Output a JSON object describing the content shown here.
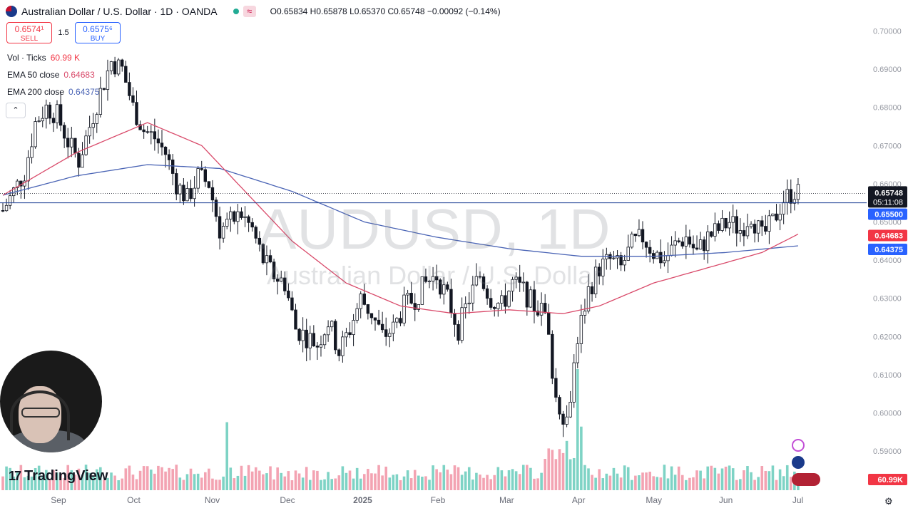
{
  "header": {
    "title": "Australian Dollar / U.S. Dollar · 1D · OANDA",
    "ohlc": "O0.65834 H0.65878 L0.65370 C0.65748 −0.00092 (−0.14%)",
    "sell_price": "0.6574¹",
    "sell_label": "SELL",
    "spread": "1.5",
    "buy_price": "0.6575⁶",
    "buy_label": "BUY"
  },
  "legend": {
    "vol_label": "Vol · Ticks",
    "vol_value": "60.99 K",
    "ema50_label": "EMA 50 close",
    "ema50_value": "0.64683",
    "ema200_label": "EMA 200 close",
    "ema200_value": "0.64375",
    "collapse_glyph": "⌃"
  },
  "watermark": {
    "symbol": "AUDUSD, 1D",
    "name": "Australian Dollar / U.S. Dollar"
  },
  "branding": {
    "logo_text": "TradingView",
    "logo_mark": "17"
  },
  "colors": {
    "up": "#131722",
    "down": "#131722",
    "ema50": "#d94a6a",
    "ema200": "#4a64b5",
    "hline": "#1e3f94",
    "vol_up": "#7ed3c5",
    "vol_down": "#f3a3b2",
    "last_bg": "#131722",
    "ema50_bg": "#f23645",
    "ema200_bg": "#2962ff",
    "hline_bg": "#2962ff"
  },
  "icons": [
    "lightning-icon",
    "au-flag-icon",
    "us-flag-icon",
    "au-flag-icon",
    "settings-gear-icon"
  ],
  "chart_data": {
    "type": "candlestick",
    "symbol": "AUDUSD",
    "timeframe": "1D",
    "ylim": [
      0.585,
      0.7025
    ],
    "y_ticks": [
      "0.70000",
      "0.69000",
      "0.68000",
      "0.67000",
      "0.66000",
      "0.65000",
      "0.64000",
      "0.63000",
      "0.62000",
      "0.61000",
      "0.60000",
      "0.59000"
    ],
    "x_ticks": [
      "Sep",
      "Oct",
      "Nov",
      "Dec",
      "2025",
      "Feb",
      "Mar",
      "Apr",
      "May",
      "Jun",
      "Jul"
    ],
    "price_labels": {
      "last_price": "0.65748",
      "countdown": "05:11:08",
      "horizontal_line": "0.65500",
      "ema50": "0.64683",
      "ema200": "0.64375",
      "volume": "60.99K"
    },
    "close_path": [
      [
        0,
        0.653
      ],
      [
        3,
        0.658
      ],
      [
        6,
        0.663
      ],
      [
        9,
        0.676
      ],
      [
        12,
        0.68
      ],
      [
        15,
        0.678
      ],
      [
        18,
        0.671
      ],
      [
        21,
        0.666
      ],
      [
        24,
        0.675
      ],
      [
        27,
        0.684
      ],
      [
        30,
        0.692
      ],
      [
        33,
        0.69
      ],
      [
        36,
        0.68
      ],
      [
        39,
        0.674
      ],
      [
        42,
        0.672
      ],
      [
        45,
        0.668
      ],
      [
        48,
        0.66
      ],
      [
        51,
        0.656
      ],
      [
        54,
        0.662
      ],
      [
        57,
        0.66
      ],
      [
        60,
        0.648
      ],
      [
        63,
        0.65
      ],
      [
        66,
        0.652
      ],
      [
        69,
        0.648
      ],
      [
        72,
        0.64
      ],
      [
        75,
        0.636
      ],
      [
        78,
        0.634
      ],
      [
        81,
        0.622
      ],
      [
        84,
        0.62
      ],
      [
        87,
        0.618
      ],
      [
        90,
        0.624
      ],
      [
        93,
        0.616
      ],
      [
        96,
        0.622
      ],
      [
        99,
        0.63
      ],
      [
        102,
        0.626
      ],
      [
        105,
        0.62
      ],
      [
        108,
        0.622
      ],
      [
        111,
        0.628
      ],
      [
        114,
        0.63
      ],
      [
        117,
        0.634
      ],
      [
        120,
        0.636
      ],
      [
        123,
        0.63
      ],
      [
        126,
        0.622
      ],
      [
        129,
        0.63
      ],
      [
        132,
        0.636
      ],
      [
        135,
        0.63
      ],
      [
        138,
        0.628
      ],
      [
        141,
        0.634
      ],
      [
        144,
        0.632
      ],
      [
        147,
        0.628
      ],
      [
        150,
        0.626
      ],
      [
        153,
        0.604
      ],
      [
        156,
        0.598
      ],
      [
        159,
        0.62
      ],
      [
        162,
        0.632
      ],
      [
        165,
        0.638
      ],
      [
        168,
        0.64
      ],
      [
        171,
        0.638
      ],
      [
        174,
        0.644
      ],
      [
        177,
        0.646
      ],
      [
        180,
        0.642
      ],
      [
        183,
        0.64
      ],
      [
        186,
        0.644
      ],
      [
        189,
        0.646
      ],
      [
        192,
        0.642
      ],
      [
        195,
        0.646
      ],
      [
        198,
        0.648
      ],
      [
        201,
        0.65
      ],
      [
        204,
        0.648
      ],
      [
        207,
        0.652
      ],
      [
        210,
        0.646
      ],
      [
        213,
        0.65
      ],
      [
        216,
        0.656
      ],
      [
        219,
        0.658
      ],
      [
        220,
        0.6575
      ]
    ],
    "ema50_path": [
      [
        0,
        0.657
      ],
      [
        20,
        0.668
      ],
      [
        40,
        0.676
      ],
      [
        55,
        0.67
      ],
      [
        65,
        0.66
      ],
      [
        80,
        0.645
      ],
      [
        95,
        0.634
      ],
      [
        110,
        0.628
      ],
      [
        125,
        0.626
      ],
      [
        140,
        0.627
      ],
      [
        155,
        0.626
      ],
      [
        165,
        0.628
      ],
      [
        180,
        0.634
      ],
      [
        195,
        0.638
      ],
      [
        210,
        0.642
      ],
      [
        220,
        0.6468
      ]
    ],
    "ema200_path": [
      [
        0,
        0.657
      ],
      [
        20,
        0.662
      ],
      [
        40,
        0.665
      ],
      [
        60,
        0.664
      ],
      [
        80,
        0.658
      ],
      [
        100,
        0.65
      ],
      [
        120,
        0.646
      ],
      [
        140,
        0.643
      ],
      [
        160,
        0.641
      ],
      [
        180,
        0.641
      ],
      [
        200,
        0.642
      ],
      [
        220,
        0.64375
      ]
    ],
    "horizontal_line": 0.655,
    "volume_spike_bars": [
      62,
      150,
      160
    ],
    "grid": false,
    "legend_position": "top-left"
  }
}
